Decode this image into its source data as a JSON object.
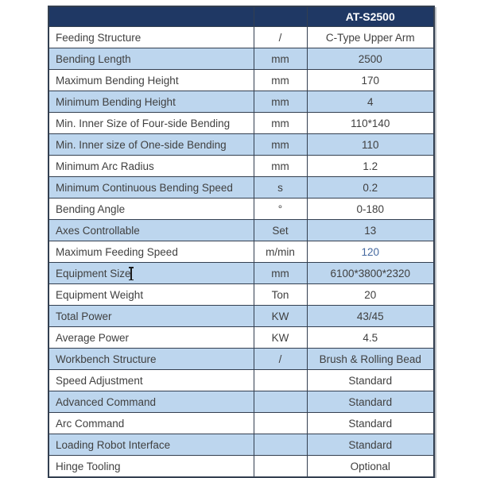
{
  "spec_table": {
    "model": "AT-S2500",
    "header": {
      "label": "",
      "unit": "",
      "model": "AT-S2500"
    },
    "rows": [
      {
        "label": "Feeding Structure",
        "unit": "/",
        "value": "C-Type Upper Arm"
      },
      {
        "label": "Bending Length",
        "unit": "mm",
        "value": "2500"
      },
      {
        "label": "Maximum Bending Height",
        "unit": "mm",
        "value": "170"
      },
      {
        "label": "Minimum Bending Height",
        "unit": "mm",
        "value": "4"
      },
      {
        "label": "Min. Inner Size of Four-side Bending",
        "unit": "mm",
        "value": "110*140"
      },
      {
        "label": "Min. Inner size of One-side Bending",
        "unit": "mm",
        "value": "110"
      },
      {
        "label": "Minimum Arc Radius",
        "unit": "mm",
        "value": "1.2"
      },
      {
        "label": "Minimum Continuous Bending Speed",
        "unit": "s",
        "value": "0.2"
      },
      {
        "label": "Bending Angle",
        "unit": "°",
        "value": "0-180"
      },
      {
        "label": "Axes Controllable",
        "unit": "Set",
        "value": "13"
      },
      {
        "label": "Maximum Feeding Speed",
        "unit": "m/min",
        "value": "120",
        "value_highlight": true
      },
      {
        "label": "Equipment Size",
        "unit": "mm",
        "value": "6100*3800*2320",
        "text_cursor": true
      },
      {
        "label": "Equipment Weight",
        "unit": "Ton",
        "value": "20"
      },
      {
        "label": "Total Power",
        "unit": "KW",
        "value": "43/45"
      },
      {
        "label": "Average Power",
        "unit": "KW",
        "value": "4.5"
      },
      {
        "label": "Workbench Structure",
        "unit": "/",
        "value": "Brush & Rolling Bead"
      },
      {
        "label": "Speed Adjustment",
        "unit": "",
        "value": "Standard"
      },
      {
        "label": "Advanced Command",
        "unit": "",
        "value": "Standard"
      },
      {
        "label": "Arc Command",
        "unit": "",
        "value": "Standard"
      },
      {
        "label": "Loading Robot Interface",
        "unit": "",
        "value": "Standard"
      },
      {
        "label": "Hinge Tooling",
        "unit": "",
        "value": "Optional"
      }
    ],
    "colors": {
      "header_bg": "#1f3864",
      "header_text": "#ffffff",
      "band_bg": "#bdd6ee",
      "row_bg": "#ffffff",
      "border": "#333f50",
      "text": "#404040",
      "highlight_value": "#4569a0"
    }
  }
}
